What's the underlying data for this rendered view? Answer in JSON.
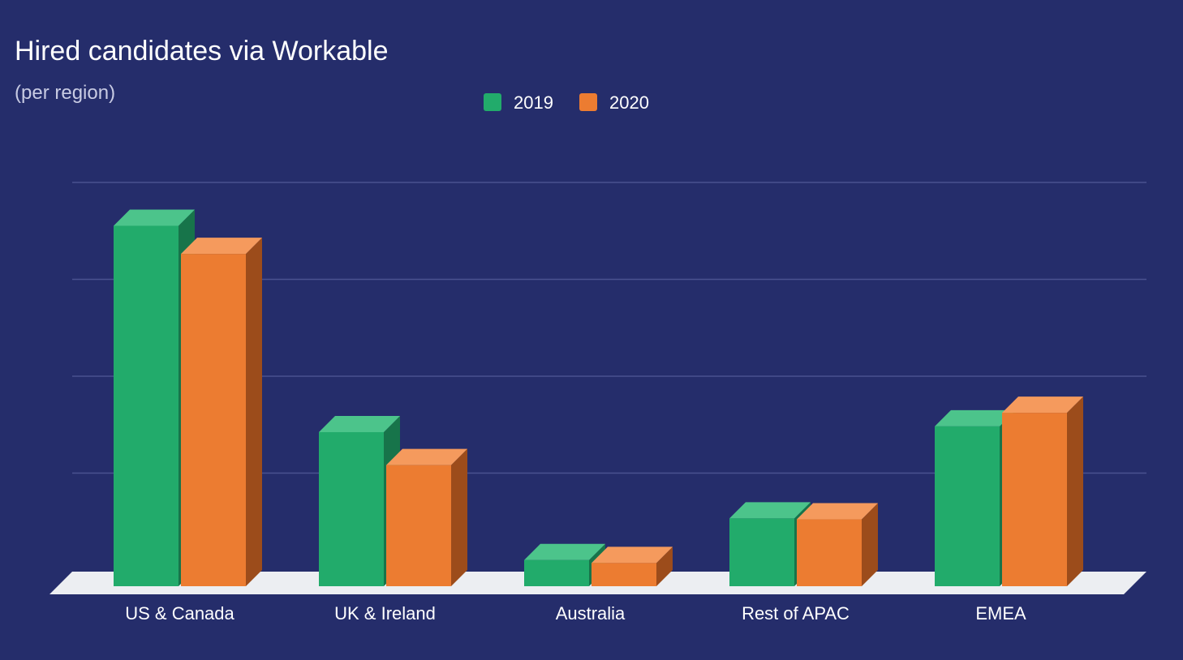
{
  "chart_data": {
    "type": "bar",
    "title": "Hired candidates via Workable",
    "subtitle": "(per region)",
    "categories": [
      "US & Canada",
      "UK & Ireland",
      "Australia",
      "Rest of APAC",
      "EMEA"
    ],
    "series": [
      {
        "name": "2019",
        "values": [
          3.72,
          1.59,
          0.27,
          0.7,
          1.65
        ]
      },
      {
        "name": "2020",
        "values": [
          3.43,
          1.25,
          0.24,
          0.69,
          1.79
        ]
      }
    ],
    "ylim": [
      0,
      4
    ],
    "grid": true,
    "legend": "top-center",
    "xlabel": "",
    "ylabel": ""
  },
  "colors": {
    "background": "#252d6b",
    "grid": "#4a5290",
    "floor_top": "#eceef2",
    "axis_text": "#ffffff",
    "subtitle_text": "#c8cbe3",
    "series": [
      {
        "front": "#22ab6b",
        "top": "#4cc48b",
        "side": "#17744a"
      },
      {
        "front": "#ec7c31",
        "top": "#f59a5d",
        "side": "#9c4c1b"
      }
    ]
  }
}
